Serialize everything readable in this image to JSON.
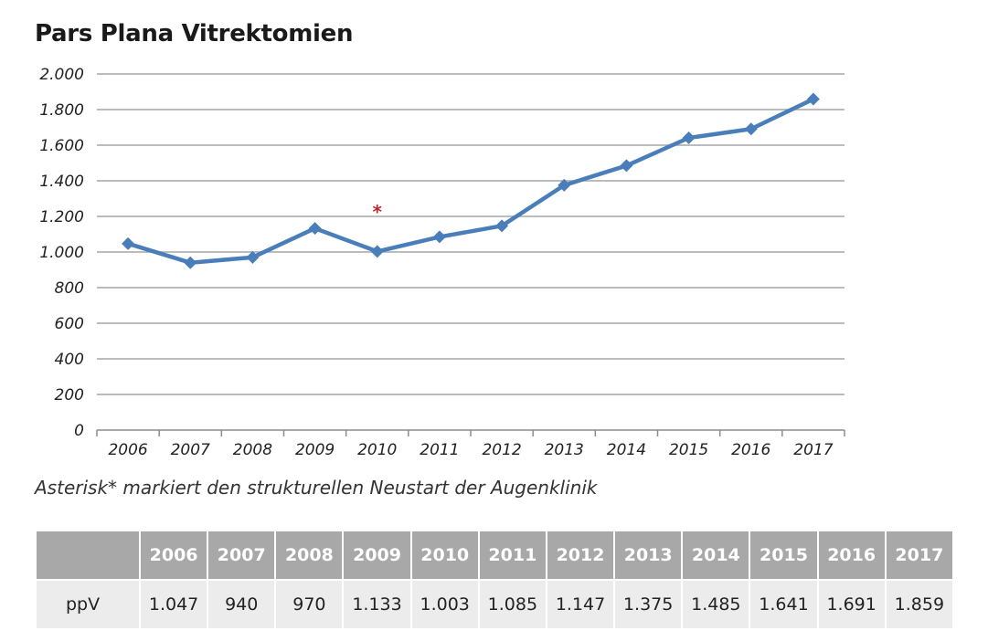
{
  "title": "Pars Plana Vitrektomien",
  "caption": "Asterisk* markiert den strukturellen Neustart der Augenklinik",
  "chart_data": {
    "type": "line",
    "title": "Pars Plana Vitrektomien",
    "x": [
      "2006",
      "2007",
      "2008",
      "2009",
      "2010",
      "2011",
      "2012",
      "2013",
      "2014",
      "2015",
      "2016",
      "2017"
    ],
    "series": [
      {
        "values": [
          1047,
          940,
          970,
          1133,
          1003,
          1085,
          1147,
          1375,
          1485,
          1641,
          1691,
          1859
        ]
      }
    ],
    "ylim": [
      0,
      2000
    ],
    "yticks": [
      0,
      200,
      400,
      600,
      800,
      1000,
      1200,
      1400,
      1600,
      1800,
      2000
    ],
    "ytick_labels": [
      "0",
      "200",
      "400",
      "600",
      "800",
      "1.000",
      "1.200",
      "1.400",
      "1.600",
      "1.800",
      "2.000"
    ],
    "grid": true,
    "annotations": [
      {
        "text": "*",
        "x": "2010",
        "y": 1240
      }
    ],
    "colors": {
      "line": "#4a7ebb",
      "grid": "#a6a6a6",
      "axis": "#8c8c8c",
      "annotation": "#c0272d"
    }
  },
  "table": {
    "corner": "",
    "headers": [
      "2006",
      "2007",
      "2008",
      "2009",
      "2010",
      "2011",
      "2012",
      "2013",
      "2014",
      "2015",
      "2016",
      "2017"
    ],
    "row_label": "ppV",
    "values": [
      "1.047",
      "940",
      "970",
      "1.133",
      "1.003",
      "1.085",
      "1.147",
      "1.375",
      "1.485",
      "1.641",
      "1.691",
      "1.859"
    ]
  }
}
